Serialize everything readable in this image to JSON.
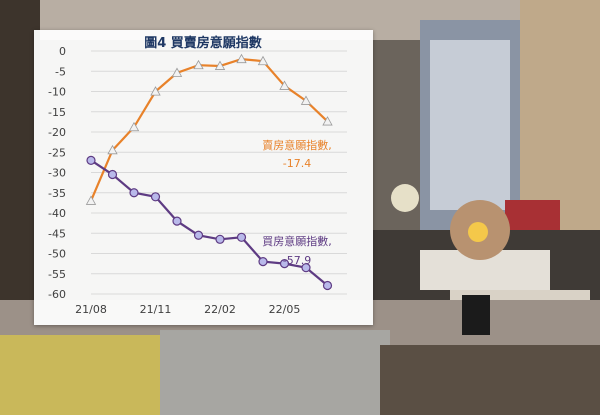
{
  "chart_data": {
    "type": "line",
    "title": "圖4  買賣房意願指數",
    "categories": [
      "21/08",
      "21/09",
      "21/10",
      "21/11",
      "21/12",
      "22/01",
      "22/02",
      "22/03",
      "22/04",
      "22/05",
      "22/06",
      "22/07"
    ],
    "x_tick_labels": [
      "21/08",
      "21/11",
      "22/02",
      "22/05"
    ],
    "y_tick_labels": [
      "0",
      "-5",
      "-10",
      "-15",
      "-20",
      "-25",
      "-30",
      "-35",
      "-40",
      "-45",
      "-50",
      "-55",
      "-60"
    ],
    "ylim": [
      -60,
      0
    ],
    "grid": true,
    "series": [
      {
        "name": "賣房意願指數",
        "color": "#e8822a",
        "marker_fill": "#f2f2f2",
        "marker": "triangle",
        "values": [
          -37,
          -24.5,
          -18.8,
          -10,
          -5.4,
          -3.5,
          -3.7,
          -2,
          -2.5,
          -8.6,
          -12.3,
          -17.4
        ],
        "end_label_name": "賣房意願指數,",
        "end_label_value": "-17.4"
      },
      {
        "name": "買房意願指數",
        "color": "#5e3b83",
        "marker_fill": "#b9b9ea",
        "marker": "circle",
        "values": [
          -27,
          -30.5,
          -35,
          -36,
          -42,
          -45.5,
          -46.5,
          -46,
          -52,
          -52.5,
          -53.5,
          -57.9
        ],
        "end_label_name": "買房意願指數,",
        "end_label_value": "-57.9"
      }
    ]
  },
  "colors": {
    "panel_background": "#ffffff",
    "grid": "#d9d9d9",
    "title": "#1f3864",
    "tick_text": "#404040"
  }
}
